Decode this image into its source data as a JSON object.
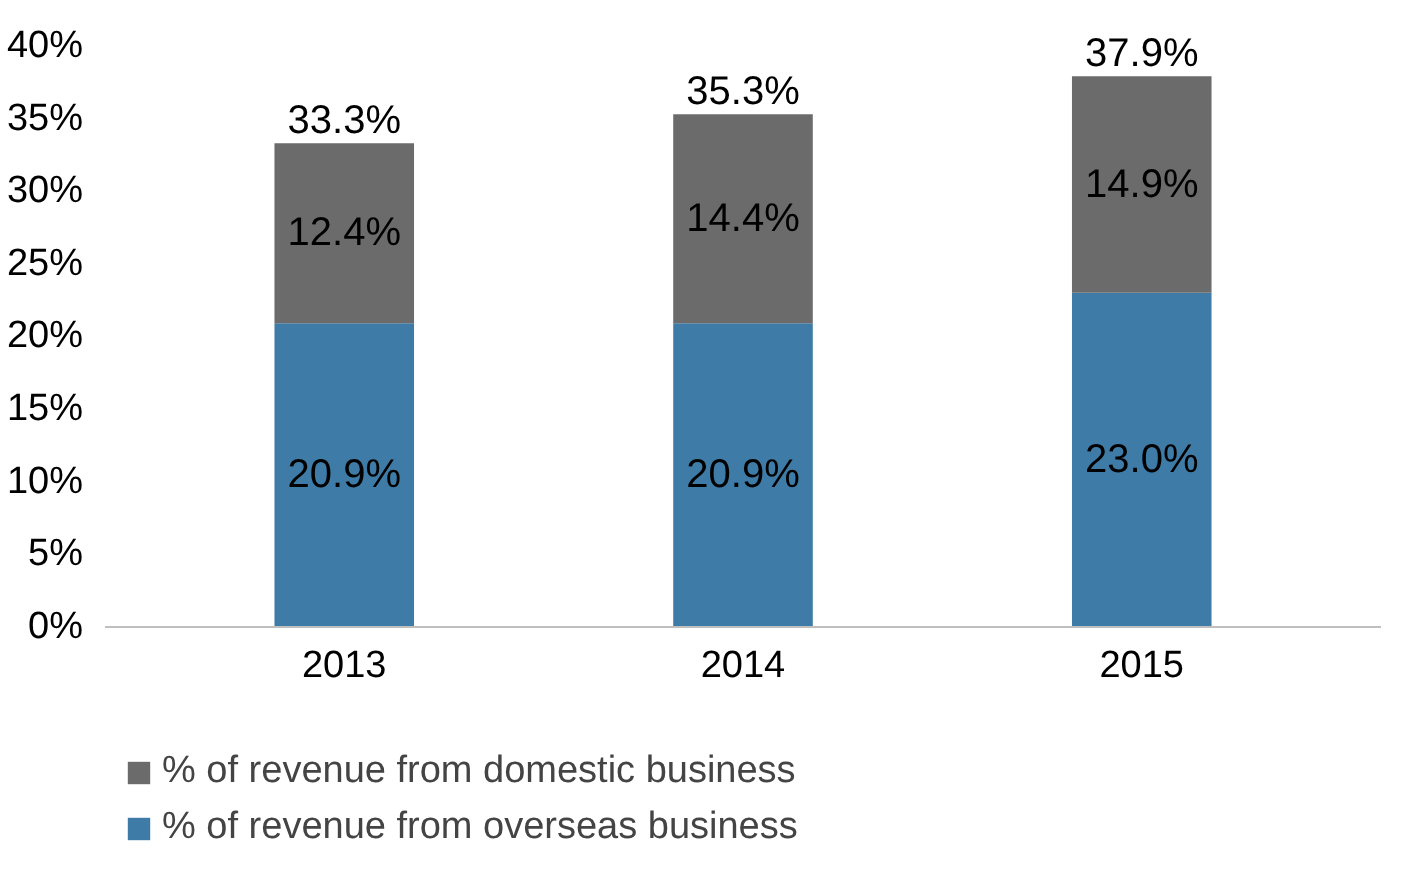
{
  "chart_data": {
    "type": "bar",
    "stacked": true,
    "categories": [
      "2013",
      "2014",
      "2015"
    ],
    "series": [
      {
        "name": "% of revenue from overseas business",
        "color": "#3e7ba6",
        "values": [
          20.9,
          20.9,
          23.0
        ],
        "value_labels": [
          "20.9%",
          "20.9%",
          "23.0%"
        ]
      },
      {
        "name": "% of revenue from domestic business",
        "color": "#6b6b6b",
        "values": [
          12.4,
          14.4,
          14.9
        ],
        "value_labels": [
          "12.4%",
          "14.4%",
          "14.9%"
        ]
      }
    ],
    "totals": [
      "33.3%",
      "35.3%",
      "37.9%"
    ],
    "ylim": [
      0,
      40
    ],
    "yticks": [
      {
        "value": 0,
        "label": "0%"
      },
      {
        "value": 5,
        "label": "5%"
      },
      {
        "value": 10,
        "label": "10%"
      },
      {
        "value": 15,
        "label": "15%"
      },
      {
        "value": 20,
        "label": "20%"
      },
      {
        "value": 25,
        "label": "25%"
      },
      {
        "value": 30,
        "label": "30%"
      },
      {
        "value": 35,
        "label": "35%"
      },
      {
        "value": 40,
        "label": "40%"
      }
    ],
    "grid": false,
    "legend": "bottom"
  }
}
